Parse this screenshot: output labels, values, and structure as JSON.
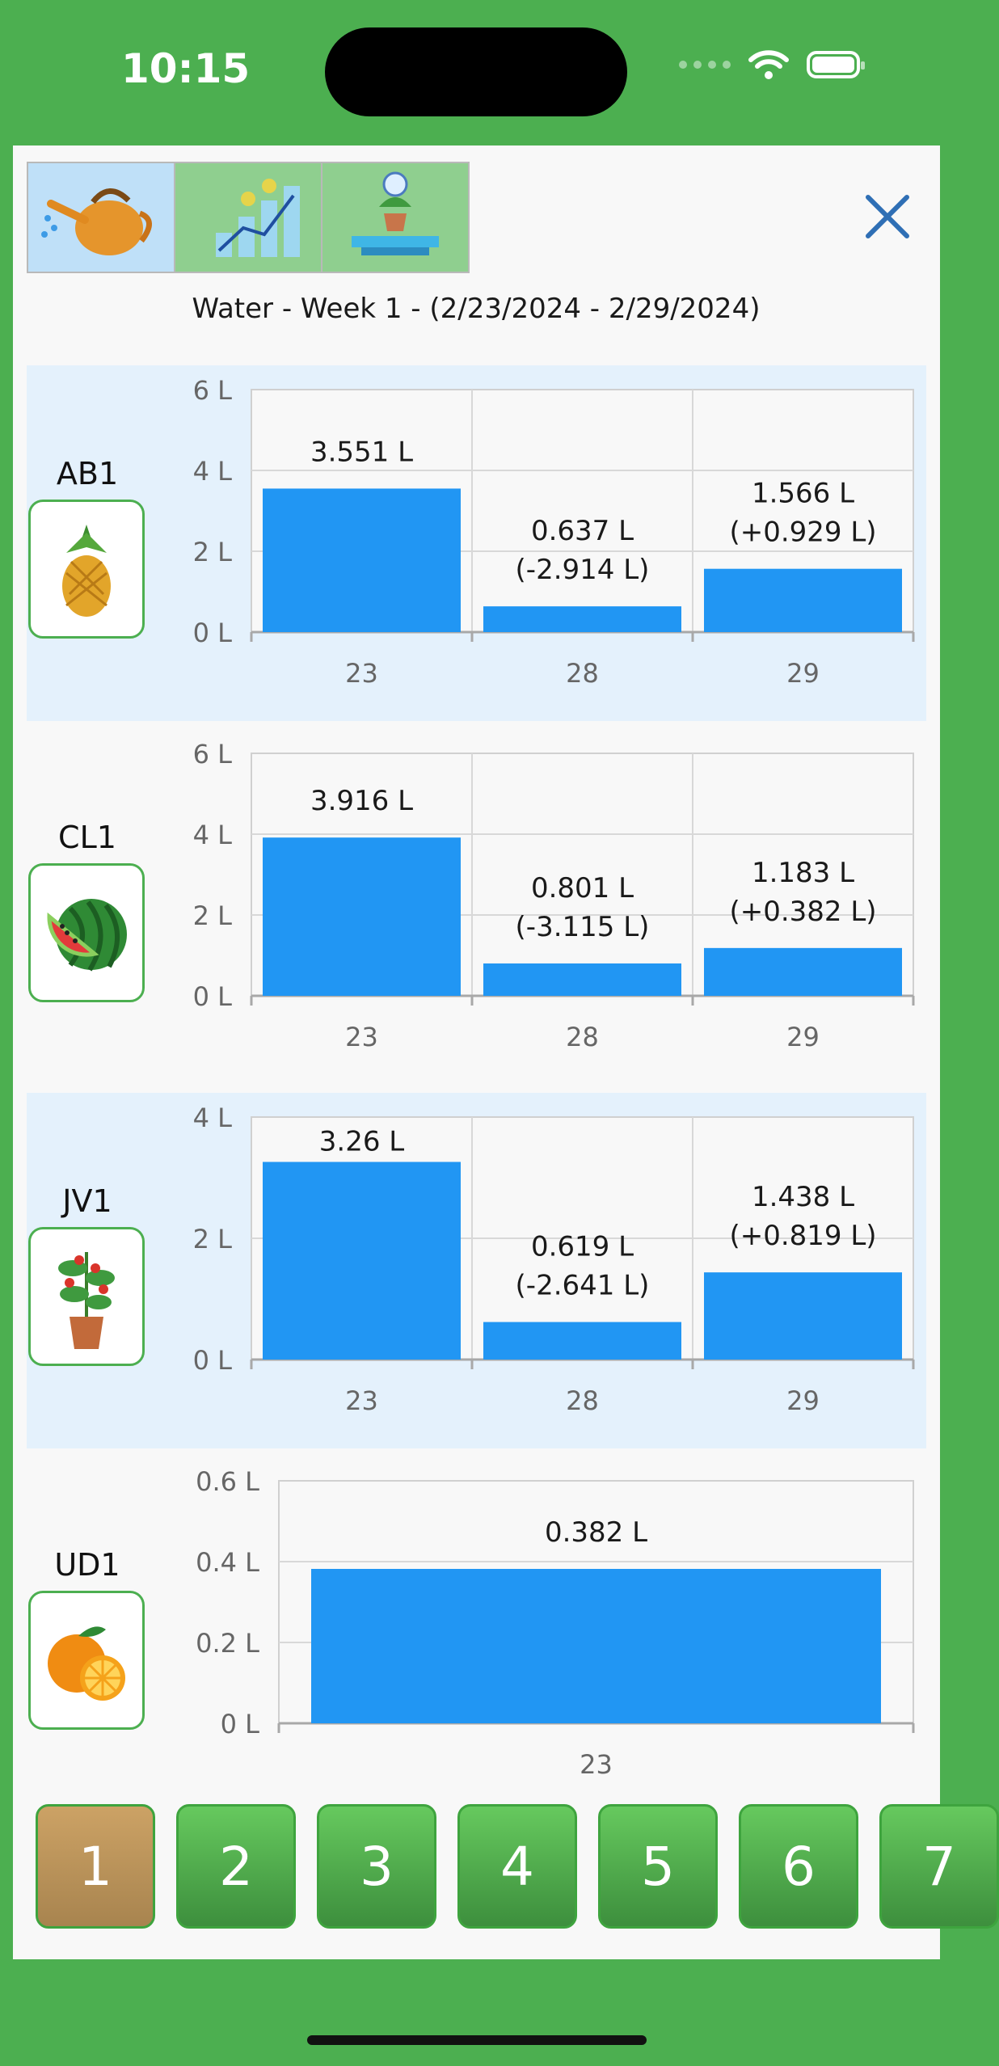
{
  "status": {
    "time": "10:15"
  },
  "icons": {
    "close": "close-icon",
    "wifi": "wifi-icon",
    "battery": "battery-icon",
    "signal": "cellular-signal-icon",
    "tabs": [
      "watering-can-icon",
      "growth-chart-icon",
      "plant-scale-icon"
    ],
    "plants": [
      "pineapple-icon",
      "watermelon-icon",
      "tomato-plant-icon",
      "orange-icon"
    ]
  },
  "colors": {
    "frame": "#4caf50",
    "bar": "#2196f3",
    "row_highlight": "#e4f1fc",
    "active_page": "#b78f57"
  },
  "header": {
    "title": "Water - Week 1 - (2/23/2024 - 2/29/2024)"
  },
  "plants": [
    {
      "id": "AB1"
    },
    {
      "id": "CL1"
    },
    {
      "id": "JV1"
    },
    {
      "id": "UD1"
    }
  ],
  "chart_data": [
    {
      "type": "bar",
      "categories": [
        "23",
        "28",
        "29"
      ],
      "values": [
        3.551,
        0.637,
        1.566
      ],
      "yticks": [
        "6 L",
        "4 L",
        "2 L",
        "0 L"
      ],
      "ylim": [
        0,
        6
      ],
      "labels": [
        [
          "3.551 L"
        ],
        [
          "0.637 L",
          "(-2.914 L)"
        ],
        [
          "1.566 L",
          "(+0.929 L)"
        ]
      ],
      "grid": true
    },
    {
      "type": "bar",
      "categories": [
        "23",
        "28",
        "29"
      ],
      "values": [
        3.916,
        0.801,
        1.183
      ],
      "yticks": [
        "6 L",
        "4 L",
        "2 L",
        "0 L"
      ],
      "ylim": [
        0,
        6
      ],
      "labels": [
        [
          "3.916 L"
        ],
        [
          "0.801 L",
          "(-3.115 L)"
        ],
        [
          "1.183 L",
          "(+0.382 L)"
        ]
      ],
      "grid": true
    },
    {
      "type": "bar",
      "categories": [
        "23",
        "28",
        "29"
      ],
      "values": [
        3.26,
        0.619,
        1.438
      ],
      "yticks": [
        "4 L",
        "2 L",
        "0 L"
      ],
      "ylim": [
        0,
        4
      ],
      "labels": [
        [
          "3.26 L"
        ],
        [
          "0.619 L",
          "(-2.641 L)"
        ],
        [
          "1.438 L",
          "(+0.819 L)"
        ]
      ],
      "grid": true
    },
    {
      "type": "bar",
      "categories": [
        "23"
      ],
      "values": [
        0.382
      ],
      "yticks": [
        "0.6 L",
        "0.4 L",
        "0.2 L",
        "0 L"
      ],
      "ylim": [
        0,
        0.6
      ],
      "labels": [
        [
          "0.382 L"
        ]
      ],
      "grid": true
    }
  ],
  "pager": {
    "pages": [
      "1",
      "2",
      "3",
      "4",
      "5",
      "6",
      "7"
    ],
    "active": "1"
  }
}
